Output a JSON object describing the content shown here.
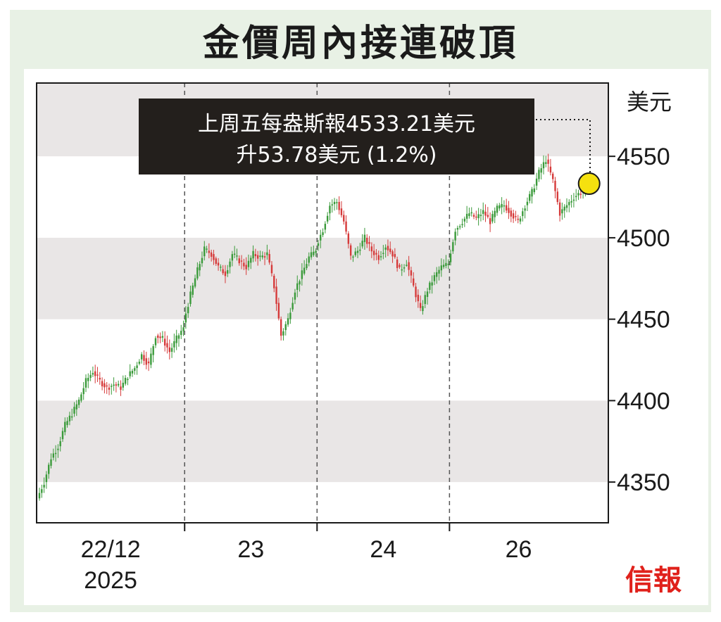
{
  "chart_data": {
    "type": "candlestick",
    "title": "金價周內接連破頂",
    "ylabel": "美元",
    "ylim": [
      4325,
      4595
    ],
    "y_ticks": [
      4350,
      4400,
      4450,
      4500,
      4550
    ],
    "y_tick_labels": [
      "4350",
      "4400",
      "4450",
      "4500",
      "4550"
    ],
    "x_day_labels": [
      {
        "label": "22/12",
        "sub": "2025"
      },
      {
        "label": "23",
        "sub": ""
      },
      {
        "label": "24",
        "sub": ""
      },
      {
        "label": "26",
        "sub": ""
      }
    ],
    "annotation": {
      "line1": "上周五每盎斯報4533.21美元",
      "line2": "升53.78美元 (1.2%)",
      "value": 4533.21,
      "marker_color": "#f5e10f"
    },
    "up_color": "#3a9a3a",
    "down_color": "#d63a3a",
    "series": [
      {
        "name": "22/12",
        "anchors": [
          4340,
          4350,
          4365,
          4372,
          4385,
          4392,
          4400,
          4412,
          4418,
          4412,
          4408,
          4410,
          4408,
          4415,
          4420,
          4428,
          4422,
          4440,
          4438,
          4430,
          4438,
          4445
        ]
      },
      {
        "name": "23",
        "anchors": [
          4448,
          4465,
          4480,
          4493,
          4490,
          4482,
          4478,
          4490,
          4486,
          4482,
          4490,
          4488,
          4490,
          4470,
          4440,
          4450,
          4468,
          4478,
          4488,
          4492
        ]
      },
      {
        "name": "24",
        "anchors": [
          4495,
          4505,
          4520,
          4522,
          4510,
          4488,
          4492,
          4500,
          4492,
          4488,
          4495,
          4490,
          4480,
          4485,
          4470,
          4455,
          4468,
          4476,
          4482,
          4484
        ]
      },
      {
        "name": "26",
        "anchors": [
          4485,
          4505,
          4510,
          4515,
          4512,
          4516,
          4510,
          4518,
          4520,
          4515,
          4510,
          4520,
          4528,
          4540,
          4548,
          4535,
          4515,
          4520,
          4525,
          4528,
          4533.21
        ]
      }
    ]
  },
  "brand": {
    "logo_text": "信報",
    "logo_color": "#e0211b"
  }
}
